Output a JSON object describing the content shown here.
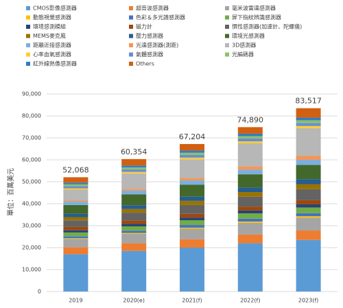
{
  "chart_data": {
    "type": "stacked_bar",
    "y_label": "單位：百萬美元",
    "categories": [
      "2019",
      "2020(e)",
      "2021(f)",
      "2022(f)",
      "2023(f)"
    ],
    "totals": [
      52068,
      60354,
      67204,
      74890,
      83517
    ],
    "total_labels": [
      "52,068",
      "60,354",
      "67,204",
      "74,890",
      "83,517"
    ],
    "ylim": [
      0,
      90000
    ],
    "yticks": [
      0,
      {
        "value": 10000,
        "label": "10,000"
      },
      {
        "value": 20000,
        "label": "20,000"
      },
      {
        "value": 30000,
        "label": "30,000"
      },
      {
        "value": 40000,
        "label": "40,000"
      },
      {
        "value": 50000,
        "label": "50,000"
      },
      {
        "value": 60000,
        "label": "60,000"
      },
      {
        "value": 70000,
        "label": "70,000"
      },
      {
        "value": 80000,
        "label": "80,000"
      },
      {
        "value": 90000,
        "label": "90,000"
      }
    ],
    "grid": true,
    "series": [
      {
        "name": "CMOS影像感測器",
        "color": "#5b9bd5",
        "values": [
          17000,
          18500,
          20000,
          22000,
          23500
        ]
      },
      {
        "name": "超音波感測器",
        "color": "#ed7d31",
        "values": [
          3200,
          3500,
          3800,
          4000,
          4300
        ]
      },
      {
        "name": "毫米波雷達感測器",
        "color": "#a5a5a5",
        "values": [
          3800,
          4300,
          4800,
          5300,
          5800
        ]
      },
      {
        "name": "動態視覺感測器",
        "color": "#ffc000",
        "values": [
          300,
          400,
          500,
          600,
          700
        ]
      },
      {
        "name": "色彩＆多光譜感測器",
        "color": "#4472c4",
        "values": [
          800,
          1000,
          1200,
          1300,
          1400
        ]
      },
      {
        "name": "屏下指紋辨識感測器",
        "color": "#70ad47",
        "values": [
          1800,
          2000,
          2200,
          2400,
          2600
        ]
      },
      {
        "name": "環境感測模組",
        "color": "#264478",
        "values": [
          1000,
          1100,
          1200,
          1300,
          1400
        ]
      },
      {
        "name": "磁力計",
        "color": "#9e480e",
        "values": [
          1500,
          1600,
          1700,
          1800,
          1900
        ]
      },
      {
        "name": "慣性感測器(加速計、陀螺儀)",
        "color": "#636363",
        "values": [
          3000,
          3500,
          4000,
          4500,
          5000
        ]
      },
      {
        "name": "MEMS麥克風",
        "color": "#997300",
        "values": [
          1500,
          1700,
          1900,
          2100,
          2300
        ]
      },
      {
        "name": "壓力感測器",
        "color": "#255e91",
        "values": [
          1500,
          1700,
          1900,
          2100,
          2300
        ]
      },
      {
        "name": "環境光感測器",
        "color": "#43682b",
        "values": [
          4000,
          5000,
          5500,
          6000,
          6500
        ]
      },
      {
        "name": "距離近接感測器",
        "color": "#7cafdd",
        "values": [
          1500,
          1700,
          1900,
          2100,
          2300
        ]
      },
      {
        "name": "光達感測器(測距)",
        "color": "#f1975a",
        "values": [
          500,
          800,
          1100,
          1500,
          1900
        ]
      },
      {
        "name": "3D感測器",
        "color": "#b7b7b7",
        "values": [
          5000,
          7000,
          8500,
          10500,
          12500
        ]
      },
      {
        "name": "心率血氧感測器",
        "color": "#ffcd33",
        "values": [
          600,
          700,
          800,
          900,
          1000
        ]
      },
      {
        "name": "氣體感測器",
        "color": "#698ed0",
        "values": [
          1000,
          1100,
          1200,
          1300,
          1400
        ]
      },
      {
        "name": "光編碼器",
        "color": "#8cc168",
        "values": [
          800,
          900,
          1000,
          1100,
          1200
        ]
      },
      {
        "name": "紅外線熱像感測器",
        "color": "#327dc2",
        "values": [
          800,
          900,
          1000,
          1100,
          1200
        ]
      },
      {
        "name": "Others",
        "color": "#d26012",
        "values": [
          2468,
          2954,
          3004,
          2990,
          4317
        ]
      }
    ]
  }
}
